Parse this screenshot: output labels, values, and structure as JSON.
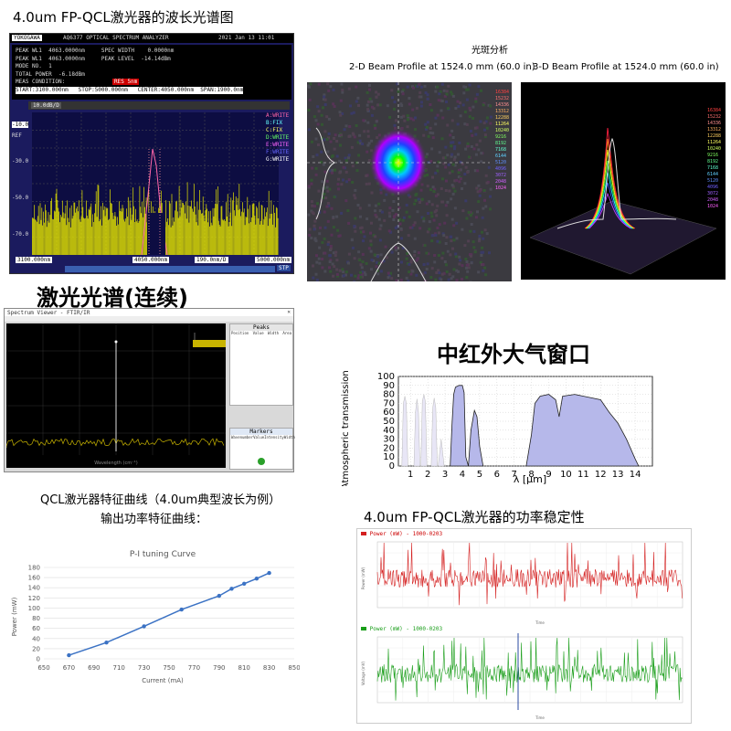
{
  "titles": {
    "fp_spectrum": "4.0um FP-QCL激光器的波长光谱图",
    "cw_spectrum": "激光光谱(连续)",
    "atm_window": "中红外大气窗口",
    "qcl_curve_l1": "QCL激光器特征曲线（4.0um典型波长为例）",
    "qcl_curve_l2": "输出功率特征曲线：",
    "stability": "4.0um FP-QCL激光器的功率稳定性"
  },
  "osa": {
    "brand": "YOKOGAWA",
    "model": "AQ6377 OPTICAL SPECTRUM ANALYZER",
    "datetime": "2021 Jan 13 11:01",
    "rows": [
      "PEAK WL1  4063.0000nm     SPEC WIDTH    0.0000nm",
      "PEAK WL1  4063.0000nm     PEAK LEVEL  -14.14dBm",
      "MODE NO.  1",
      "TOTAL POWER  -6.18dBm",
      "MEAS CONDITION: ",
      "START:3100.000nm   STOP:5000.000nm   CENTER:4050.000nm  SPAN:1900.0nm"
    ],
    "meas_status": "RES 5nm",
    "ylabels": [
      "-10.0",
      "-30.0",
      "-50.0",
      "-70.0"
    ],
    "ref_label": "REF",
    "x_left": "3100.000nm",
    "x_center": "4050.000nm",
    "x_right": "5000.000nm",
    "span_label": "190.0nm/D",
    "scale_label": "10.0dB/D",
    "sidebar": [
      "A:WRITE",
      "B:FIX",
      "C:FIX",
      "D:WRITE",
      "E:WRITE",
      "F:WRITE",
      "G:WRITE"
    ],
    "stop_label": "STP"
  },
  "beam": {
    "heading": "光斑分析",
    "left_title": "2-D Beam Profile at 1524.0 mm (60.0 in)",
    "right_title": "3-D Beam Profile at 1524.0 mm (60.0 in)",
    "left_scale": [
      "16384",
      "15232",
      "14336",
      "13312",
      "12288",
      "11264",
      "10240",
      "9216",
      "8192",
      "7168",
      "6144",
      "5120",
      "4096",
      "3072",
      "2048",
      "1024"
    ],
    "right_scale": [
      "16384",
      "15232",
      "14336",
      "13312",
      "12288",
      "11264",
      "10240",
      "9216",
      "8192",
      "7168",
      "6144",
      "5120",
      "4096",
      "3072",
      "2048",
      "1024"
    ]
  },
  "cw": {
    "window_title": "Spectrum Viewer - FTIR/IR",
    "xlabel": "Wavelength (cm⁻¹)",
    "panel_title": "Markers",
    "panel_header": "Peaks",
    "table_cols": [
      "Position",
      "Value",
      "Width",
      "Area"
    ],
    "markers_cols": [
      "Wavenumber",
      "Value",
      "Intensity",
      "Width"
    ]
  },
  "atm_chart": {
    "type": "area",
    "ylabel": "Atmospheric transmission [%]",
    "xlabel": "λ [μm]",
    "xlim": [
      0.3,
      15
    ],
    "ylim": [
      0,
      100
    ],
    "xticks": [
      1,
      2,
      3,
      4,
      5,
      6,
      7,
      8,
      9,
      10,
      11,
      12,
      13,
      14
    ],
    "yticks": [
      0,
      10,
      20,
      30,
      40,
      50,
      60,
      70,
      80,
      90,
      100
    ],
    "window_3_5um": [
      [
        3.3,
        0
      ],
      [
        3.4,
        45
      ],
      [
        3.5,
        80
      ],
      [
        3.6,
        88
      ],
      [
        3.8,
        90
      ],
      [
        4.0,
        90
      ],
      [
        4.1,
        82
      ],
      [
        4.2,
        10
      ],
      [
        4.35,
        0
      ],
      [
        4.5,
        40
      ],
      [
        4.7,
        62
      ],
      [
        4.85,
        55
      ],
      [
        5.0,
        22
      ],
      [
        5.2,
        0
      ]
    ],
    "window_8_14um": [
      [
        7.7,
        0
      ],
      [
        8.0,
        35
      ],
      [
        8.2,
        70
      ],
      [
        8.5,
        78
      ],
      [
        9.0,
        80
      ],
      [
        9.4,
        74
      ],
      [
        9.6,
        55
      ],
      [
        9.8,
        78
      ],
      [
        10.5,
        80
      ],
      [
        11.5,
        76
      ],
      [
        12.0,
        74
      ],
      [
        12.5,
        60
      ],
      [
        13.0,
        48
      ],
      [
        13.5,
        30
      ],
      [
        14.0,
        8
      ],
      [
        14.2,
        0
      ]
    ],
    "nir_bands": [
      [
        0.5,
        [
          0,
          70,
          78,
          70,
          0
        ]
      ],
      [
        1.2,
        [
          0,
          60,
          75,
          60,
          0
        ]
      ],
      [
        1.6,
        [
          0,
          72,
          80,
          72,
          0
        ]
      ],
      [
        2.2,
        [
          0,
          65,
          76,
          65,
          0
        ]
      ],
      [
        2.6,
        [
          0,
          30,
          0
        ]
      ]
    ]
  },
  "pi_chart": {
    "type": "line",
    "title": "P-I  tuning Curve",
    "xlabel": "Current (mA)",
    "ylabel": "Power (mW)",
    "x": [
      670,
      700,
      730,
      760,
      790,
      800,
      810,
      820,
      830
    ],
    "values": [
      7,
      32,
      64,
      97,
      124,
      138,
      148,
      158,
      169
    ],
    "xlim": [
      650,
      850
    ],
    "ylim": [
      0,
      180
    ],
    "xticks": [
      650,
      670,
      690,
      710,
      730,
      750,
      770,
      790,
      810,
      830,
      850
    ],
    "yticks": [
      0,
      20,
      40,
      60,
      80,
      100,
      120,
      140,
      160,
      180
    ]
  },
  "stab": {
    "top_legend": "Power (mW) - 1000-0203",
    "bottom_legend": "Power (mW) - 1000-0203",
    "top_ylabel": "Power (mW)",
    "bottom_ylabel": "Voltage (mV)",
    "xlabel": "Time",
    "top_color": "#d42020",
    "bottom_color": "#1a9e1a"
  }
}
